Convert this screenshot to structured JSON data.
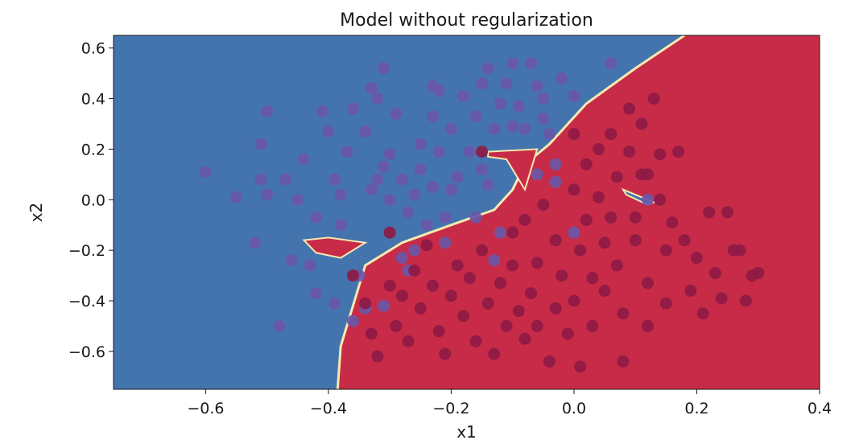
{
  "chart_data": {
    "type": "scatter",
    "title": "Model without regularization",
    "xlabel": "x1",
    "ylabel": "x2",
    "xlim": [
      -0.75,
      0.4
    ],
    "ylim": [
      -0.75,
      0.65
    ],
    "xticks": [
      -0.6,
      -0.4,
      -0.2,
      0.0,
      0.2,
      0.4
    ],
    "xtick_labels": [
      "−0.6",
      "−0.4",
      "−0.2",
      "0.0",
      "0.2",
      "0.4"
    ],
    "yticks": [
      0.6,
      0.4,
      0.2,
      0.0,
      -0.2,
      -0.4,
      -0.6
    ],
    "ytick_labels": [
      "0.6",
      "0.4",
      "0.2",
      "0.0",
      "−0.2",
      "−0.4",
      "−0.6"
    ],
    "grid": false,
    "colors": {
      "region_blue": "#4474ae",
      "region_red": "#c82b47",
      "boundary": "#f4e9b0",
      "point_blue": "#6a57a8",
      "point_red": "#8e1a45"
    },
    "decision_boundary": [
      [
        0.18,
        0.65
      ],
      [
        0.1,
        0.52
      ],
      [
        0.02,
        0.38
      ],
      [
        -0.04,
        0.22
      ],
      [
        -0.08,
        0.14
      ],
      [
        -0.1,
        0.04
      ],
      [
        -0.13,
        -0.04
      ],
      [
        -0.2,
        -0.1
      ],
      [
        -0.28,
        -0.17
      ],
      [
        -0.34,
        -0.26
      ],
      [
        -0.36,
        -0.42
      ],
      [
        -0.38,
        -0.58
      ],
      [
        -0.385,
        -0.75
      ]
    ],
    "islands": [
      {
        "class": "red",
        "outline": [
          [
            -0.44,
            -0.16
          ],
          [
            -0.4,
            -0.15
          ],
          [
            -0.34,
            -0.17
          ],
          [
            -0.38,
            -0.23
          ],
          [
            -0.42,
            -0.21
          ]
        ]
      },
      {
        "class": "red",
        "outline": [
          [
            -0.14,
            0.19
          ],
          [
            -0.06,
            0.2
          ],
          [
            -0.08,
            0.04
          ],
          [
            -0.11,
            0.16
          ],
          [
            -0.14,
            0.17
          ]
        ]
      },
      {
        "class": "blue",
        "outline": [
          [
            0.08,
            0.04
          ],
          [
            0.13,
            -0.01
          ],
          [
            0.12,
            -0.02
          ],
          [
            0.085,
            0.02
          ]
        ]
      }
    ],
    "series": [
      {
        "class": "blue",
        "points": [
          [
            -0.6,
            0.11
          ],
          [
            -0.55,
            0.01
          ],
          [
            -0.52,
            -0.17
          ],
          [
            -0.51,
            0.08
          ],
          [
            -0.5,
            0.02
          ],
          [
            -0.51,
            0.22
          ],
          [
            -0.5,
            0.35
          ],
          [
            -0.48,
            -0.5
          ],
          [
            -0.47,
            0.08
          ],
          [
            -0.46,
            -0.24
          ],
          [
            -0.45,
            0.0
          ],
          [
            -0.44,
            0.16
          ],
          [
            -0.43,
            -0.26
          ],
          [
            -0.42,
            -0.37
          ],
          [
            -0.42,
            -0.07
          ],
          [
            -0.41,
            0.35
          ],
          [
            -0.4,
            0.27
          ],
          [
            -0.39,
            -0.41
          ],
          [
            -0.39,
            0.08
          ],
          [
            -0.38,
            -0.1
          ],
          [
            -0.38,
            0.02
          ],
          [
            -0.37,
            0.19
          ],
          [
            -0.36,
            -0.48
          ],
          [
            -0.36,
            0.36
          ],
          [
            -0.35,
            -0.3
          ],
          [
            -0.34,
            0.27
          ],
          [
            -0.33,
            0.04
          ],
          [
            -0.33,
            0.44
          ],
          [
            -0.32,
            0.08
          ],
          [
            -0.32,
            0.4
          ],
          [
            -0.31,
            -0.42
          ],
          [
            -0.31,
            0.13
          ],
          [
            -0.3,
            0.0
          ],
          [
            -0.3,
            0.18
          ],
          [
            -0.29,
            0.34
          ],
          [
            -0.28,
            -0.23
          ],
          [
            -0.28,
            0.08
          ],
          [
            -0.27,
            -0.05
          ],
          [
            -0.26,
            -0.2
          ],
          [
            -0.26,
            0.02
          ],
          [
            -0.25,
            0.12
          ],
          [
            -0.25,
            0.22
          ],
          [
            -0.24,
            -0.1
          ],
          [
            -0.23,
            0.05
          ],
          [
            -0.23,
            0.33
          ],
          [
            -0.22,
            0.19
          ],
          [
            -0.22,
            0.43
          ],
          [
            -0.21,
            -0.07
          ],
          [
            -0.2,
            0.04
          ],
          [
            -0.2,
            0.28
          ],
          [
            -0.19,
            0.09
          ],
          [
            -0.18,
            0.41
          ],
          [
            -0.17,
            0.19
          ],
          [
            -0.16,
            -0.07
          ],
          [
            -0.16,
            0.33
          ],
          [
            -0.15,
            0.46
          ],
          [
            -0.14,
            0.52
          ],
          [
            -0.14,
            0.06
          ],
          [
            -0.13,
            0.28
          ],
          [
            -0.12,
            0.38
          ],
          [
            -0.12,
            -0.13
          ],
          [
            -0.11,
            0.46
          ],
          [
            -0.1,
            0.29
          ],
          [
            -0.1,
            0.54
          ],
          [
            -0.09,
            0.37
          ],
          [
            -0.08,
            0.28
          ],
          [
            -0.07,
            0.54
          ],
          [
            -0.06,
            0.45
          ],
          [
            -0.05,
            0.4
          ],
          [
            -0.05,
            0.32
          ],
          [
            -0.04,
            0.26
          ],
          [
            -0.02,
            0.48
          ],
          [
            0.0,
            0.41
          ],
          [
            0.06,
            0.54
          ],
          [
            -0.03,
            0.14
          ],
          [
            -0.13,
            -0.24
          ],
          [
            -0.21,
            -0.17
          ],
          [
            -0.27,
            -0.28
          ],
          [
            -0.34,
            -0.43
          ],
          [
            -0.15,
            0.12
          ],
          [
            -0.06,
            0.1
          ],
          [
            -0.03,
            0.07
          ],
          [
            0.0,
            -0.13
          ],
          [
            0.12,
            0.0
          ],
          [
            -0.31,
            0.52
          ],
          [
            -0.23,
            0.45
          ]
        ]
      },
      {
        "class": "red",
        "points": [
          [
            -0.36,
            -0.3
          ],
          [
            -0.34,
            -0.41
          ],
          [
            -0.33,
            -0.53
          ],
          [
            -0.32,
            -0.62
          ],
          [
            -0.3,
            -0.34
          ],
          [
            -0.29,
            -0.5
          ],
          [
            -0.28,
            -0.38
          ],
          [
            -0.27,
            -0.56
          ],
          [
            -0.26,
            -0.28
          ],
          [
            -0.25,
            -0.43
          ],
          [
            -0.24,
            -0.18
          ],
          [
            -0.23,
            -0.34
          ],
          [
            -0.22,
            -0.52
          ],
          [
            -0.21,
            -0.61
          ],
          [
            -0.2,
            -0.38
          ],
          [
            -0.19,
            -0.26
          ],
          [
            -0.18,
            -0.46
          ],
          [
            -0.17,
            -0.31
          ],
          [
            -0.16,
            -0.56
          ],
          [
            -0.15,
            -0.2
          ],
          [
            -0.14,
            -0.41
          ],
          [
            -0.13,
            -0.61
          ],
          [
            -0.12,
            -0.33
          ],
          [
            -0.11,
            -0.5
          ],
          [
            -0.1,
            -0.26
          ],
          [
            -0.1,
            -0.13
          ],
          [
            -0.09,
            -0.44
          ],
          [
            -0.08,
            -0.55
          ],
          [
            -0.08,
            -0.08
          ],
          [
            -0.07,
            -0.37
          ],
          [
            -0.06,
            -0.25
          ],
          [
            -0.06,
            -0.5
          ],
          [
            -0.05,
            -0.02
          ],
          [
            -0.04,
            -0.64
          ],
          [
            -0.03,
            -0.43
          ],
          [
            -0.03,
            -0.16
          ],
          [
            -0.02,
            -0.3
          ],
          [
            -0.01,
            -0.53
          ],
          [
            0.0,
            0.26
          ],
          [
            0.0,
            0.04
          ],
          [
            0.0,
            -0.4
          ],
          [
            0.01,
            -0.2
          ],
          [
            0.01,
            -0.66
          ],
          [
            0.02,
            -0.08
          ],
          [
            0.02,
            0.14
          ],
          [
            0.03,
            -0.31
          ],
          [
            0.03,
            -0.5
          ],
          [
            0.04,
            0.2
          ],
          [
            0.04,
            0.01
          ],
          [
            0.05,
            -0.17
          ],
          [
            0.05,
            -0.36
          ],
          [
            0.06,
            0.26
          ],
          [
            0.06,
            -0.07
          ],
          [
            0.07,
            -0.26
          ],
          [
            0.07,
            0.09
          ],
          [
            0.08,
            -0.45
          ],
          [
            0.08,
            -0.64
          ],
          [
            0.09,
            0.36
          ],
          [
            0.09,
            0.19
          ],
          [
            0.1,
            -0.07
          ],
          [
            0.1,
            -0.16
          ],
          [
            0.11,
            0.3
          ],
          [
            0.11,
            0.1
          ],
          [
            0.12,
            -0.33
          ],
          [
            0.12,
            -0.5
          ],
          [
            0.13,
            0.4
          ],
          [
            0.14,
            0.18
          ],
          [
            0.14,
            0.0
          ],
          [
            0.15,
            -0.2
          ],
          [
            0.15,
            -0.41
          ],
          [
            0.16,
            -0.09
          ],
          [
            0.17,
            0.19
          ],
          [
            0.18,
            -0.16
          ],
          [
            0.19,
            -0.36
          ],
          [
            0.2,
            -0.23
          ],
          [
            0.21,
            -0.45
          ],
          [
            0.22,
            -0.05
          ],
          [
            0.23,
            -0.29
          ],
          [
            0.24,
            -0.39
          ],
          [
            0.25,
            -0.05
          ],
          [
            0.26,
            -0.2
          ],
          [
            0.27,
            -0.2
          ],
          [
            0.28,
            -0.4
          ],
          [
            0.29,
            -0.3
          ],
          [
            0.3,
            -0.29
          ],
          [
            -0.3,
            -0.13
          ],
          [
            -0.15,
            0.19
          ],
          [
            0.12,
            0.1
          ]
        ]
      }
    ]
  }
}
